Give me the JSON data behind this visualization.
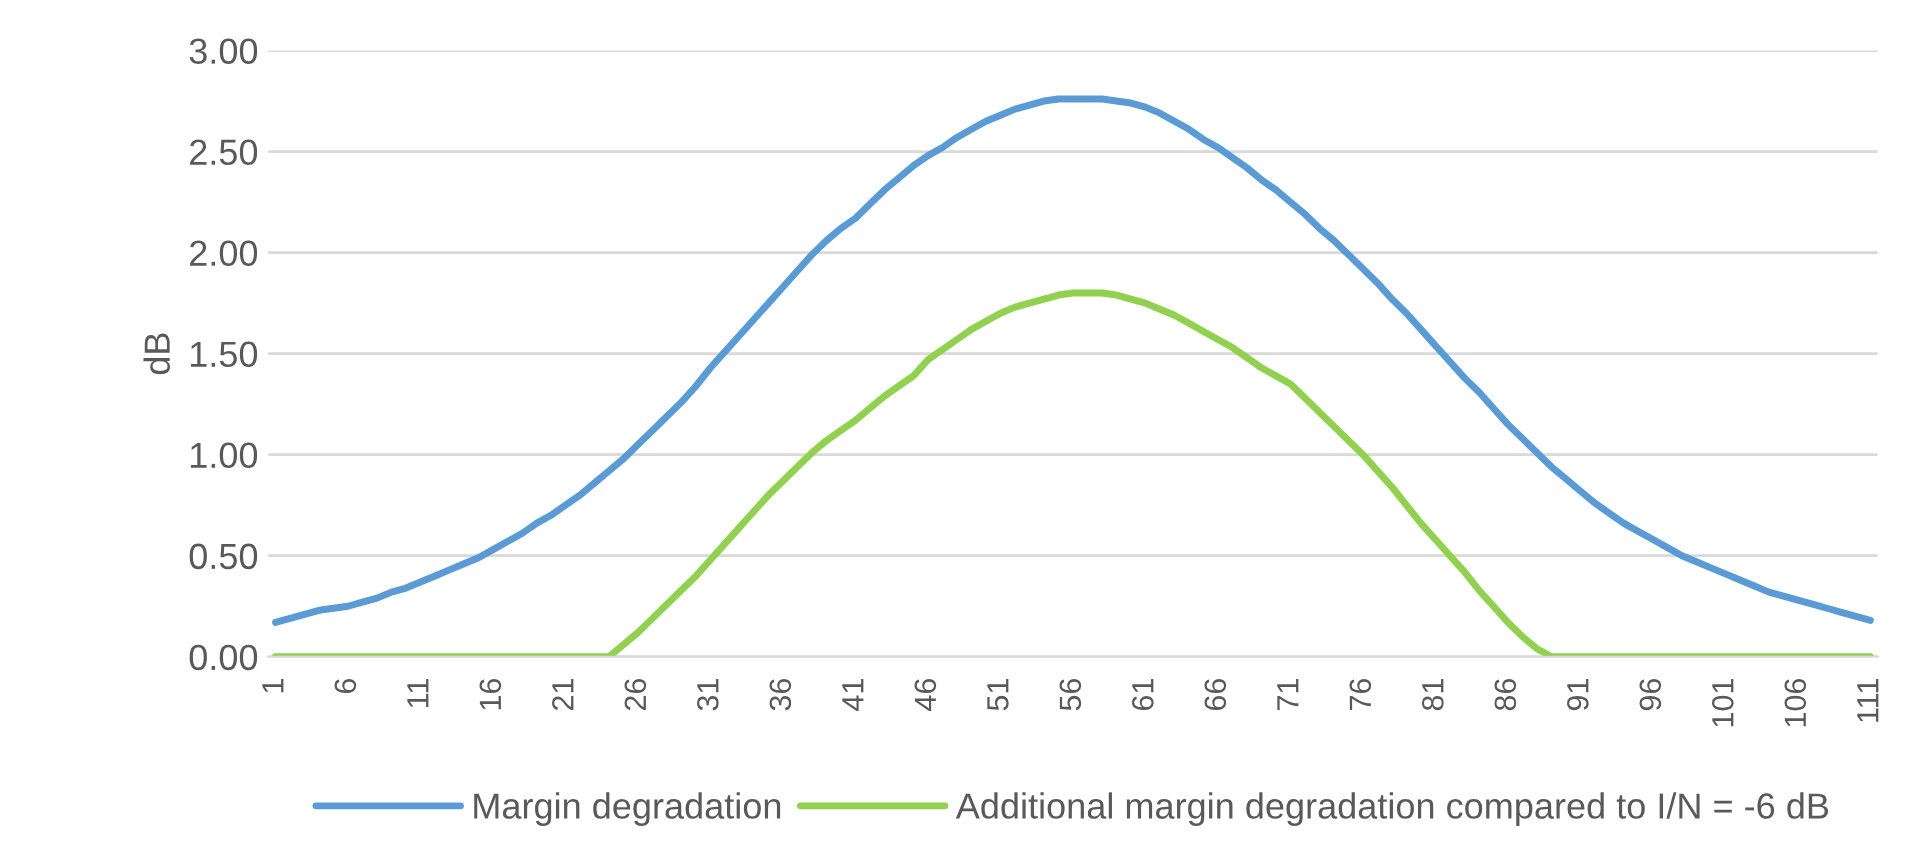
{
  "chart_data": {
    "type": "line",
    "ylabel": "dB",
    "categories": [
      "1",
      null,
      null,
      null,
      null,
      "6",
      null,
      null,
      null,
      null,
      "11",
      null,
      null,
      null,
      null,
      "16",
      null,
      null,
      null,
      null,
      "21",
      null,
      null,
      null,
      null,
      "26",
      null,
      null,
      null,
      null,
      "31",
      null,
      null,
      null,
      null,
      "36",
      null,
      null,
      null,
      null,
      "41",
      null,
      null,
      null,
      null,
      "46",
      null,
      null,
      null,
      null,
      "51",
      null,
      null,
      null,
      null,
      "56",
      null,
      null,
      null,
      null,
      "61",
      null,
      null,
      null,
      null,
      "66",
      null,
      null,
      null,
      null,
      "71",
      null,
      null,
      null,
      null,
      "76",
      null,
      null,
      null,
      null,
      "81",
      null,
      null,
      null,
      null,
      "86",
      null,
      null,
      null,
      null,
      "91",
      null,
      null,
      null,
      null,
      "96",
      null,
      null,
      null,
      null,
      "101",
      null,
      null,
      null,
      null,
      "106",
      null,
      null,
      null,
      null,
      "111"
    ],
    "series": [
      {
        "name": "Margin degradation",
        "color": "#5b9bd5",
        "values": [
          0.17,
          0.19,
          0.21,
          0.23,
          0.24,
          0.25,
          0.27,
          0.29,
          0.32,
          0.34,
          0.37,
          0.4,
          0.43,
          0.46,
          0.49,
          0.53,
          0.57,
          0.61,
          0.66,
          0.7,
          0.75,
          0.8,
          0.86,
          0.92,
          0.98,
          1.05,
          1.12,
          1.19,
          1.26,
          1.34,
          1.43,
          1.51,
          1.59,
          1.67,
          1.75,
          1.83,
          1.91,
          1.99,
          2.06,
          2.12,
          2.17,
          2.24,
          2.31,
          2.37,
          2.43,
          2.48,
          2.52,
          2.57,
          2.61,
          2.65,
          2.68,
          2.71,
          2.73,
          2.75,
          2.76,
          2.76,
          2.76,
          2.76,
          2.75,
          2.74,
          2.72,
          2.69,
          2.65,
          2.61,
          2.56,
          2.52,
          2.47,
          2.42,
          2.36,
          2.31,
          2.25,
          2.19,
          2.12,
          2.06,
          1.99,
          1.92,
          1.85,
          1.77,
          1.7,
          1.62,
          1.54,
          1.46,
          1.38,
          1.31,
          1.23,
          1.15,
          1.08,
          1.01,
          0.94,
          0.88,
          0.82,
          0.76,
          0.71,
          0.66,
          0.62,
          0.58,
          0.54,
          0.5,
          0.47,
          0.44,
          0.41,
          0.38,
          0.35,
          0.32,
          0.3,
          0.28,
          0.26,
          0.24,
          0.22,
          0.2,
          0.18
        ]
      },
      {
        "name": "Additional margin degradation compared to I/N = -6 dB",
        "color": "#92d050",
        "values": [
          0,
          0,
          0,
          0,
          0,
          0,
          0,
          0,
          0,
          0,
          0,
          0,
          0,
          0,
          0,
          0,
          0,
          0,
          0,
          0,
          0,
          0,
          0,
          0,
          0.06,
          0.12,
          0.19,
          0.26,
          0.33,
          0.4,
          0.48,
          0.56,
          0.64,
          0.72,
          0.8,
          0.87,
          0.94,
          1.01,
          1.07,
          1.12,
          1.17,
          1.23,
          1.29,
          1.34,
          1.39,
          1.47,
          1.52,
          1.57,
          1.62,
          1.66,
          1.7,
          1.73,
          1.75,
          1.77,
          1.79,
          1.8,
          1.8,
          1.8,
          1.79,
          1.77,
          1.75,
          1.72,
          1.69,
          1.65,
          1.61,
          1.57,
          1.53,
          1.48,
          1.43,
          1.39,
          1.35,
          1.28,
          1.21,
          1.14,
          1.07,
          1.0,
          0.92,
          0.84,
          0.75,
          0.66,
          0.58,
          0.5,
          0.42,
          0.33,
          0.25,
          0.17,
          0.1,
          0.04,
          0,
          0,
          0,
          0,
          0,
          0,
          0,
          0,
          0,
          0,
          0,
          0,
          0,
          0,
          0,
          0,
          0,
          0,
          0,
          0,
          0,
          0,
          0
        ]
      }
    ],
    "ylim": [
      0,
      3
    ],
    "yticks": [
      {
        "value": 0,
        "label": "0.00"
      },
      {
        "value": 0.5,
        "label": "0.50"
      },
      {
        "value": 1,
        "label": "1.00"
      },
      {
        "value": 1.5,
        "label": "1.50"
      },
      {
        "value": 2,
        "label": "2.00"
      },
      {
        "value": 2.5,
        "label": "2.50"
      },
      {
        "value": 3,
        "label": "3.00"
      }
    ],
    "grid": "y",
    "legend": "bottom",
    "marker": "none",
    "line_style": "solid"
  }
}
